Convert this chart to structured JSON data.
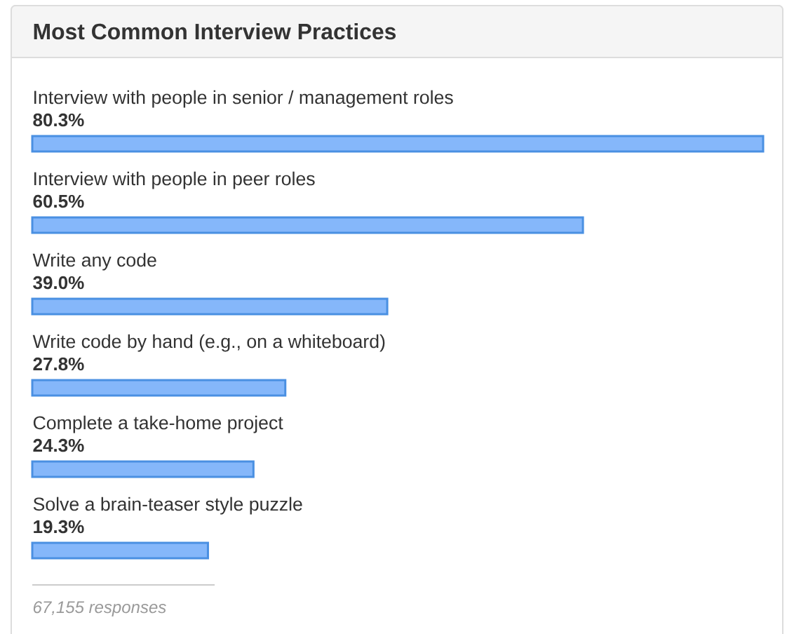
{
  "chart_data": {
    "type": "bar",
    "orientation": "horizontal",
    "title": "Most Common Interview Practices",
    "categories": [
      "Interview with people in senior / management roles",
      "Interview with people in peer roles",
      "Write any code",
      "Write code by hand (e.g., on a whiteboard)",
      "Complete a take-home project",
      "Solve a brain-teaser style puzzle"
    ],
    "values": [
      80.3,
      60.5,
      39.0,
      27.8,
      24.3,
      19.3
    ],
    "value_labels": [
      "80.3%",
      "60.5%",
      "39.0%",
      "27.8%",
      "24.3%",
      "19.3%"
    ],
    "color": "#85b7fa",
    "annotations": [
      "67,155 responses"
    ]
  }
}
